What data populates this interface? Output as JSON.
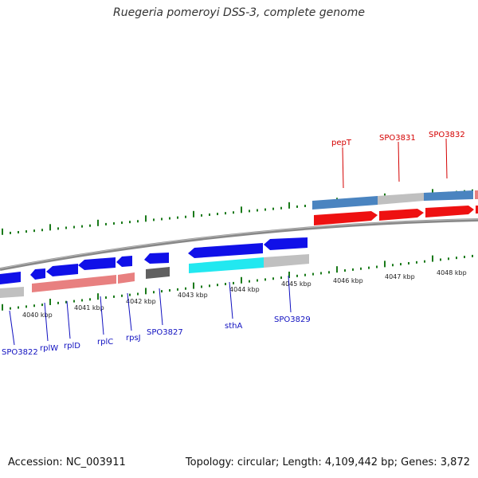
{
  "header": {
    "title": "Ruegeria pomeroyi DSS-3, complete genome"
  },
  "footer": {
    "accession": "Accession: NC_003911",
    "summary": "Topology: circular; Length: 4,109,442 bp; Genes: 3,872"
  },
  "scale": {
    "kbp_labels": [
      "4040 kbp",
      "4041 kbp",
      "4042 kbp",
      "4043 kbp",
      "4044 kbp",
      "4045 kbp",
      "4046 kbp",
      "4047 kbp",
      "4048 kbp"
    ]
  },
  "genes_top": [
    {
      "name": "pepT"
    },
    {
      "name": "SPO3831"
    },
    {
      "name": "SPO3832"
    }
  ],
  "genes_bottom": [
    {
      "name": "SPO3822"
    },
    {
      "name": "rplW"
    },
    {
      "name": "rplD"
    },
    {
      "name": "rplC"
    },
    {
      "name": "rpsJ"
    },
    {
      "name": "SPO3827"
    },
    {
      "name": "sthA"
    },
    {
      "name": "SPO3829"
    }
  ],
  "colors": {
    "forward_label": "#d40000",
    "reverse_label": "#1010c0",
    "tick": "#1a7a1a",
    "backbone": "#808080",
    "blue_gene": "#1010e8",
    "red_gene": "#ee1111",
    "steel_blue": "#4a84c0",
    "light_gray": "#c0c0c0",
    "pink": "#e88080",
    "dark_gray": "#606060",
    "cyan": "#22e8f0"
  }
}
